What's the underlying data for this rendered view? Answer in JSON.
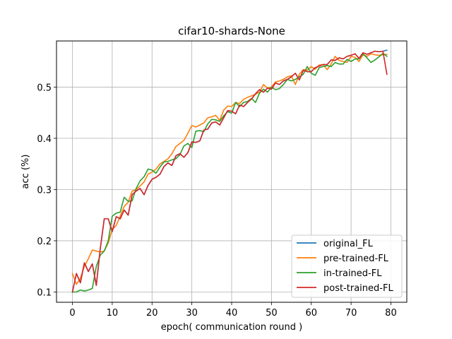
{
  "chart_data": {
    "type": "line",
    "title": "cifar10-shards-None",
    "xlabel": "epoch( communication round )",
    "ylabel": "acc (%)",
    "xlim": [
      -4,
      84
    ],
    "ylim": [
      0.08,
      0.59
    ],
    "xticks": [
      0,
      10,
      20,
      30,
      40,
      50,
      60,
      70,
      80
    ],
    "yticks": [
      0.1,
      0.2,
      0.3,
      0.4,
      0.5
    ],
    "ytick_labels": [
      "0.1",
      "0.2",
      "0.3",
      "0.4",
      "0.5"
    ],
    "grid": true,
    "legend_position": "lower-right",
    "series": [
      {
        "name": "original_FL",
        "color": "#1f77b4",
        "values": [
          0.1,
          0.136,
          0.118,
          0.157,
          0.14,
          0.155,
          0.113,
          0.185,
          0.243,
          0.243,
          0.218,
          0.247,
          0.243,
          0.26,
          0.25,
          0.29,
          0.297,
          0.302,
          0.29,
          0.308,
          0.32,
          0.324,
          0.33,
          0.345,
          0.352,
          0.347,
          0.366,
          0.37,
          0.363,
          0.372,
          0.393,
          0.392,
          0.395,
          0.416,
          0.418,
          0.43,
          0.432,
          0.426,
          0.44,
          0.454,
          0.453,
          0.448,
          0.465,
          0.462,
          0.47,
          0.477,
          0.487,
          0.495,
          0.49,
          0.498,
          0.496,
          0.508,
          0.505,
          0.512,
          0.515,
          0.52,
          0.527,
          0.514,
          0.533,
          0.53,
          0.53,
          0.538,
          0.541,
          0.544,
          0.544,
          0.553,
          0.552,
          0.557,
          0.555,
          0.56,
          0.562,
          0.565,
          0.556,
          0.567,
          0.564,
          0.567,
          0.57,
          0.569,
          0.57,
          0.572
        ]
      },
      {
        "name": "pre-trained-FL",
        "color": "#ff7f0e",
        "values": [
          0.136,
          0.115,
          0.127,
          0.15,
          0.165,
          0.182,
          0.18,
          0.178,
          0.18,
          0.196,
          0.222,
          0.23,
          0.248,
          0.267,
          0.275,
          0.297,
          0.3,
          0.307,
          0.315,
          0.33,
          0.334,
          0.34,
          0.35,
          0.355,
          0.36,
          0.37,
          0.384,
          0.39,
          0.396,
          0.41,
          0.425,
          0.422,
          0.426,
          0.43,
          0.44,
          0.442,
          0.445,
          0.435,
          0.455,
          0.463,
          0.462,
          0.47,
          0.468,
          0.476,
          0.48,
          0.483,
          0.486,
          0.49,
          0.505,
          0.498,
          0.5,
          0.51,
          0.512,
          0.515,
          0.52,
          0.522,
          0.505,
          0.525,
          0.534,
          0.533,
          0.54,
          0.535,
          0.543,
          0.544,
          0.534,
          0.545,
          0.56,
          0.552,
          0.55,
          0.548,
          0.56,
          0.558,
          0.55,
          0.563,
          0.56,
          0.565,
          0.563,
          0.562,
          0.563,
          0.564
        ]
      },
      {
        "name": "in-trained-FL",
        "color": "#2ca02c",
        "values": [
          0.1,
          0.1,
          0.104,
          0.102,
          0.104,
          0.107,
          0.15,
          0.172,
          0.18,
          0.2,
          0.248,
          0.254,
          0.256,
          0.285,
          0.277,
          0.278,
          0.302,
          0.317,
          0.325,
          0.34,
          0.338,
          0.332,
          0.344,
          0.354,
          0.355,
          0.358,
          0.36,
          0.368,
          0.385,
          0.39,
          0.382,
          0.414,
          0.415,
          0.413,
          0.428,
          0.437,
          0.436,
          0.433,
          0.444,
          0.452,
          0.449,
          0.47,
          0.462,
          0.47,
          0.472,
          0.478,
          0.47,
          0.488,
          0.496,
          0.49,
          0.5,
          0.495,
          0.497,
          0.505,
          0.515,
          0.512,
          0.515,
          0.52,
          0.525,
          0.54,
          0.527,
          0.523,
          0.538,
          0.54,
          0.542,
          0.54,
          0.548,
          0.545,
          0.545,
          0.554,
          0.55,
          0.555,
          0.555,
          0.565,
          0.557,
          0.548,
          0.553,
          0.559,
          0.566,
          0.56
        ]
      },
      {
        "name": "post-trained-FL",
        "color": "#d62728",
        "values": [
          0.1,
          0.136,
          0.118,
          0.157,
          0.14,
          0.155,
          0.113,
          0.185,
          0.243,
          0.243,
          0.218,
          0.247,
          0.243,
          0.26,
          0.25,
          0.29,
          0.297,
          0.302,
          0.29,
          0.308,
          0.32,
          0.324,
          0.33,
          0.345,
          0.352,
          0.347,
          0.366,
          0.37,
          0.363,
          0.372,
          0.393,
          0.392,
          0.395,
          0.416,
          0.418,
          0.43,
          0.432,
          0.426,
          0.44,
          0.454,
          0.453,
          0.448,
          0.465,
          0.462,
          0.47,
          0.477,
          0.487,
          0.495,
          0.49,
          0.498,
          0.496,
          0.508,
          0.505,
          0.512,
          0.515,
          0.52,
          0.527,
          0.514,
          0.533,
          0.53,
          0.53,
          0.538,
          0.541,
          0.544,
          0.544,
          0.553,
          0.552,
          0.557,
          0.555,
          0.56,
          0.562,
          0.565,
          0.556,
          0.567,
          0.564,
          0.567,
          0.57,
          0.569,
          0.57,
          0.525
        ]
      }
    ]
  }
}
